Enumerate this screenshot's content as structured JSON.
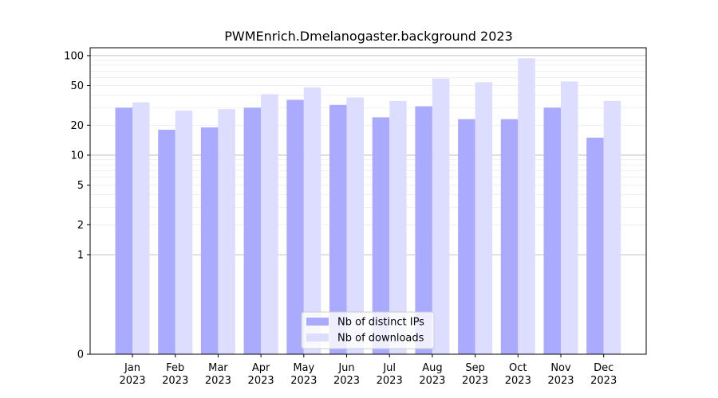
{
  "chart_data": {
    "type": "bar",
    "title": "PWMEnrich.Dmelanogaster.background 2023",
    "xlabel": "",
    "ylabel": "",
    "yscale": "symlog",
    "ylim": [
      0,
      120
    ],
    "y_ticks": [
      0,
      1,
      2,
      5,
      10,
      20,
      50,
      100
    ],
    "y_tick_labels": [
      "0",
      "1",
      "2",
      "5",
      "10",
      "20",
      "50",
      "100"
    ],
    "grid": true,
    "legend_position": "bottom-center",
    "categories": [
      [
        "Jan",
        "2023"
      ],
      [
        "Feb",
        "2023"
      ],
      [
        "Mar",
        "2023"
      ],
      [
        "Apr",
        "2023"
      ],
      [
        "May",
        "2023"
      ],
      [
        "Jun",
        "2023"
      ],
      [
        "Jul",
        "2023"
      ],
      [
        "Aug",
        "2023"
      ],
      [
        "Sep",
        "2023"
      ],
      [
        "Oct",
        "2023"
      ],
      [
        "Nov",
        "2023"
      ],
      [
        "Dec",
        "2023"
      ]
    ],
    "series": [
      {
        "name": "Nb of distinct IPs",
        "color": "#aaaaff",
        "values": [
          30,
          18,
          19,
          30,
          36,
          32,
          24,
          31,
          23,
          23,
          30,
          15
        ]
      },
      {
        "name": "Nb of downloads",
        "color": "#ddddff",
        "values": [
          34,
          28,
          29,
          41,
          48,
          38,
          35,
          59,
          54,
          94,
          55,
          35
        ]
      }
    ]
  }
}
